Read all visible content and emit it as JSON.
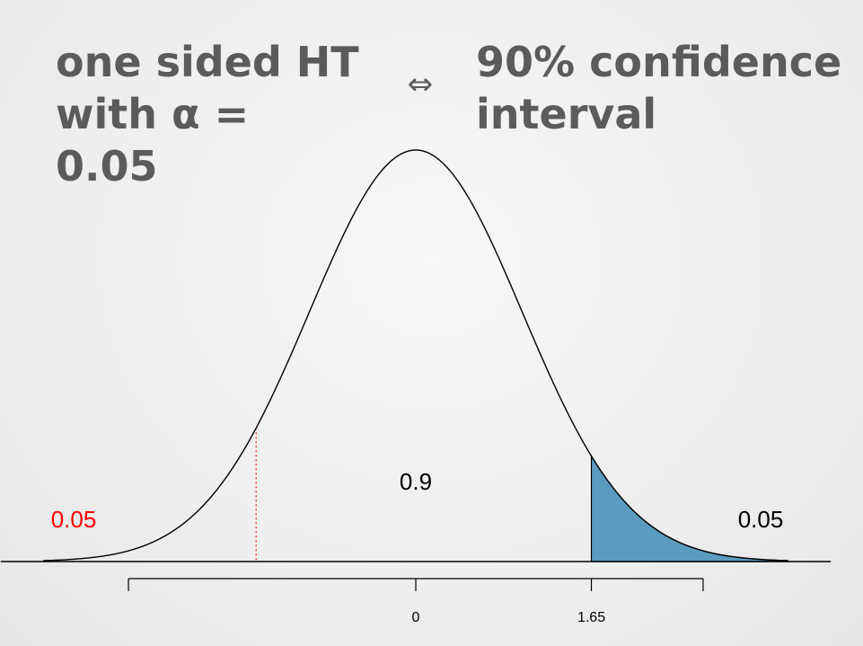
{
  "heading_left": {
    "line1": "one sided HT",
    "line2": "with α = 0.05"
  },
  "equiv_symbol": "⇔",
  "heading_right": {
    "line1": "90% confidence",
    "line2": "interval"
  },
  "chart_data": {
    "type": "area",
    "distribution": "standard normal density",
    "xlim": [
      -3.5,
      3.5
    ],
    "ticks": [
      "0",
      "1.65"
    ],
    "tick_values": [
      0,
      1.65
    ],
    "axis_end_values": [
      -2.7,
      2.7
    ],
    "critical_value": 1.65,
    "dotted_line_value": -1.5,
    "shaded_region": {
      "from": 1.65,
      "to": 3.5,
      "area": 0.05
    },
    "labels": {
      "center": "0.9",
      "left_tail": "0.05",
      "right_tail": "0.05"
    },
    "colors": {
      "shade": "#5b9bbf",
      "left_tail_label": "#ff0000",
      "dotted_line": "#ff4444",
      "curve": "#000000"
    }
  }
}
